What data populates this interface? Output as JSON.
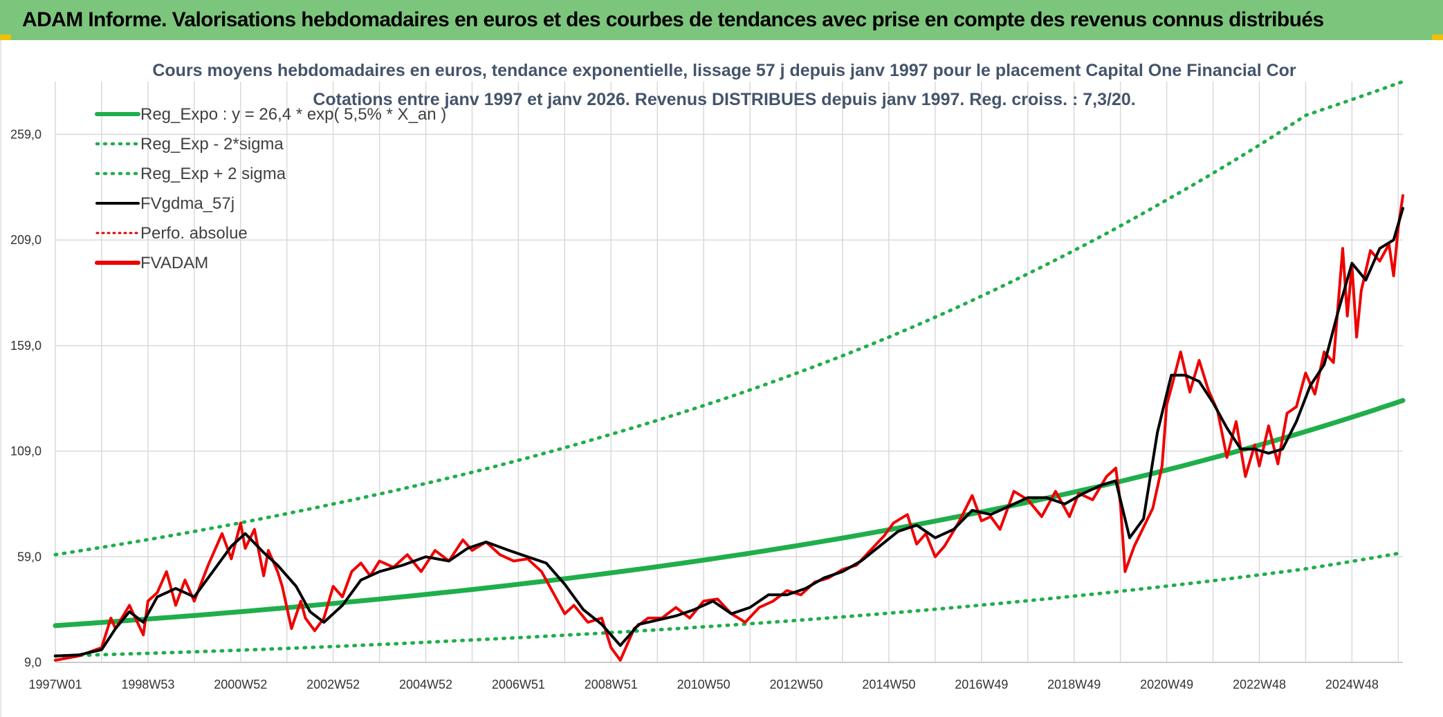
{
  "header": {
    "title": "ADAM Informe. Valorisations hebdomadaires en euros et des courbes de tendances avec prise en compte des revenus connus distribués"
  },
  "colors": {
    "header_bg": "#7cc57c",
    "trend": "#1fae4b",
    "band": "#1fae4b",
    "smooth": "#000000",
    "perf": "#e00000",
    "adam": "#ee0000",
    "grid": "#d9d9d9"
  },
  "chart_data": {
    "type": "line",
    "title_lines": [
      "Cours moyens hebdomadaires en euros, tendance exponentielle, lissage 57 j depuis janv 1997 pour le placement Capital One Financial Cor",
      "Cotations entre janv 1997 et janv 2026. Revenus DISTRIBUES depuis janv 1997. Reg. croiss. : 7,3/20."
    ],
    "xlabel": "",
    "ylabel": "",
    "ylim": [
      9,
      284
    ],
    "xlim": [
      1997.0,
      2026.1
    ],
    "yticks": [
      9.0,
      59.0,
      109.0,
      159.0,
      209.0,
      259.0
    ],
    "ytick_labels": [
      "9,0",
      "59,0",
      "109,0",
      "159,0",
      "209,0",
      "259,0"
    ],
    "xtick_labels": [
      "1997W01",
      "1998W53",
      "2000W52",
      "2002W52",
      "2004W52",
      "2006W51",
      "2008W51",
      "2010W50",
      "2012W50",
      "2014W50",
      "2016W49",
      "2018W49",
      "2020W49",
      "2022W48",
      "2024W48"
    ],
    "xtick_values": [
      1997.0,
      1999.0,
      2001.0,
      2003.0,
      2005.0,
      2007.0,
      2009.0,
      2011.0,
      2013.0,
      2015.0,
      2017.0,
      2019.0,
      2021.0,
      2023.0,
      2025.0
    ],
    "legend": [
      {
        "label": "Reg_Expo : y = 26,4 * exp( 5,5% *  X_an )",
        "style": "solid-thick",
        "color": "#1fae4b"
      },
      {
        "label": "Reg_Exp - 2*sigma",
        "style": "dotted",
        "color": "#1fae4b"
      },
      {
        "label": "Reg_Exp + 2 sigma",
        "style": "dotted",
        "color": "#1fae4b"
      },
      {
        "label": "FVgdma_57j",
        "style": "solid",
        "color": "#000000"
      },
      {
        "label": "Perfo. absolue",
        "style": "dotted-thin",
        "color": "#e00000"
      },
      {
        "label": "FVADAM",
        "style": "solid-thick",
        "color": "#ee0000"
      }
    ],
    "legend_position": "top-left",
    "series": [
      {
        "name": "Reg_Expo",
        "x": [
          1997.0,
          2000.0,
          2003.0,
          2006.0,
          2009.0,
          2012.0,
          2015.0,
          2018.0,
          2021.0,
          2024.0,
          2026.1
        ],
        "values": [
          26.4,
          31.2,
          36.9,
          43.5,
          51.4,
          60.7,
          71.8,
          84.8,
          100.1,
          118.3,
          133.0
        ]
      },
      {
        "name": "Reg_Exp - 2*sigma",
        "x": [
          1997.0,
          2000.0,
          2003.0,
          2006.0,
          2009.0,
          2012.0,
          2015.0,
          2018.0,
          2021.0,
          2024.0,
          2026.1
        ],
        "values": [
          12.0,
          14.0,
          16.5,
          19.6,
          23.1,
          27.3,
          32.3,
          38.2,
          45.1,
          53.3,
          61.0
        ]
      },
      {
        "name": "Reg_Exp + 2 sigma",
        "x": [
          1997.0,
          2000.0,
          2003.0,
          2006.0,
          2009.0,
          2012.0,
          2015.0,
          2018.0,
          2021.0,
          2024.0,
          2026.1
        ],
        "values": [
          60.0,
          71.0,
          84.0,
          99.0,
          117.0,
          138.0,
          163.0,
          193.0,
          228.0,
          268.0,
          284.0
        ]
      },
      {
        "name": "FVgdma_57j",
        "x": [
          1997.0,
          1997.5,
          1998.0,
          1998.3,
          1998.6,
          1998.9,
          1999.2,
          1999.6,
          2000.0,
          2000.4,
          2000.8,
          2001.1,
          2001.5,
          2001.8,
          2002.2,
          2002.5,
          2002.8,
          2003.2,
          2003.6,
          2004.0,
          2004.5,
          2005.0,
          2005.5,
          2005.9,
          2006.3,
          2006.8,
          2007.2,
          2007.6,
          2008.0,
          2008.4,
          2008.8,
          2009.2,
          2009.6,
          2010.0,
          2010.4,
          2010.8,
          2011.2,
          2011.6,
          2012.0,
          2012.4,
          2012.8,
          2013.2,
          2013.6,
          2014.0,
          2014.4,
          2014.8,
          2015.2,
          2015.6,
          2016.0,
          2016.4,
          2016.8,
          2017.2,
          2017.6,
          2018.0,
          2018.4,
          2018.8,
          2019.2,
          2019.6,
          2019.9,
          2020.2,
          2020.5,
          2020.8,
          2021.1,
          2021.4,
          2021.7,
          2022.0,
          2022.3,
          2022.6,
          2022.9,
          2023.2,
          2023.5,
          2023.8,
          2024.1,
          2024.4,
          2024.7,
          2025.0,
          2025.3,
          2025.6,
          2025.9,
          2026.1
        ],
        "values": [
          12.0,
          12.5,
          15.0,
          25.0,
          33.0,
          28.0,
          40.0,
          44.0,
          40.0,
          52.0,
          64.0,
          70.0,
          61.0,
          55.0,
          45.0,
          33.0,
          28.0,
          36.0,
          48.0,
          52.0,
          55.0,
          59.0,
          57.0,
          63.0,
          66.0,
          62.0,
          59.0,
          56.0,
          46.0,
          34.0,
          27.0,
          17.0,
          27.0,
          29.0,
          31.0,
          34.0,
          38.0,
          32.0,
          35.0,
          41.0,
          41.0,
          44.0,
          49.0,
          52.0,
          57.0,
          64.0,
          71.0,
          74.0,
          68.0,
          72.0,
          81.0,
          79.0,
          83.0,
          87.0,
          87.0,
          84.0,
          89.0,
          93.0,
          95.0,
          68.0,
          77.0,
          118.0,
          145.0,
          145.0,
          142.0,
          132.0,
          120.0,
          110.0,
          110.0,
          108.0,
          110.0,
          123.0,
          140.0,
          150.0,
          175.0,
          198.0,
          190.0,
          205.0,
          209.0,
          224.0
        ]
      },
      {
        "name": "FVADAM",
        "x": [
          1997.0,
          1997.5,
          1998.0,
          1998.2,
          1998.3,
          1998.6,
          1998.9,
          1999.0,
          1999.2,
          1999.4,
          1999.6,
          1999.8,
          2000.0,
          2000.3,
          2000.6,
          2000.8,
          2001.0,
          2001.1,
          2001.3,
          2001.5,
          2001.6,
          2001.8,
          2001.9,
          2002.1,
          2002.3,
          2002.4,
          2002.6,
          2002.8,
          2003.0,
          2003.2,
          2003.4,
          2003.6,
          2003.8,
          2004.0,
          2004.3,
          2004.6,
          2004.9,
          2005.2,
          2005.5,
          2005.8,
          2006.0,
          2006.3,
          2006.6,
          2006.9,
          2007.2,
          2007.5,
          2007.8,
          2008.0,
          2008.2,
          2008.5,
          2008.8,
          2009.0,
          2009.2,
          2009.5,
          2009.8,
          2010.1,
          2010.4,
          2010.7,
          2011.0,
          2011.3,
          2011.6,
          2011.9,
          2012.2,
          2012.5,
          2012.8,
          2013.1,
          2013.4,
          2013.7,
          2014.0,
          2014.3,
          2014.6,
          2014.9,
          2015.1,
          2015.4,
          2015.6,
          2015.8,
          2016.0,
          2016.2,
          2016.5,
          2016.8,
          2017.0,
          2017.2,
          2017.4,
          2017.7,
          2018.0,
          2018.3,
          2018.6,
          2018.9,
          2019.1,
          2019.4,
          2019.7,
          2019.9,
          2020.0,
          2020.1,
          2020.3,
          2020.5,
          2020.7,
          2020.9,
          2021.0,
          2021.1,
          2021.3,
          2021.5,
          2021.7,
          2021.9,
          2022.1,
          2022.3,
          2022.5,
          2022.7,
          2022.9,
          2023.0,
          2023.2,
          2023.4,
          2023.6,
          2023.8,
          2024.0,
          2024.2,
          2024.4,
          2024.6,
          2024.7,
          2024.8,
          2024.9,
          2025.0,
          2025.1,
          2025.2,
          2025.4,
          2025.6,
          2025.8,
          2025.9,
          2026.0,
          2026.1
        ],
        "values": [
          10.0,
          12.0,
          16.0,
          30.0,
          25.0,
          36.0,
          22.0,
          38.0,
          42.0,
          52.0,
          36.0,
          48.0,
          38.0,
          55.0,
          70.0,
          58.0,
          75.0,
          63.0,
          72.0,
          50.0,
          62.0,
          52.0,
          45.0,
          25.0,
          38.0,
          30.0,
          24.0,
          30.0,
          45.0,
          40.0,
          52.0,
          56.0,
          50.0,
          57.0,
          54.0,
          60.0,
          52.0,
          62.0,
          57.0,
          67.0,
          62.0,
          66.0,
          60.0,
          57.0,
          58.0,
          52.0,
          40.0,
          32.0,
          36.0,
          28.0,
          30.0,
          16.0,
          10.0,
          25.0,
          30.0,
          30.0,
          35.0,
          30.0,
          38.0,
          39.0,
          32.0,
          28.0,
          35.0,
          38.0,
          43.0,
          41.0,
          47.0,
          49.0,
          53.0,
          55.0,
          62.0,
          69.0,
          75.0,
          79.0,
          65.0,
          70.0,
          59.0,
          64.0,
          75.0,
          88.0,
          76.0,
          78.0,
          72.0,
          90.0,
          86.0,
          78.0,
          90.0,
          78.0,
          89.0,
          86.0,
          97.0,
          101.0,
          84.0,
          52.0,
          64.0,
          73.0,
          82.0,
          102.0,
          131.0,
          139.0,
          156.0,
          137.0,
          152.0,
          138.0,
          128.0,
          106.0,
          123.0,
          97.0,
          112.0,
          102.0,
          121.0,
          103.0,
          127.0,
          130.0,
          146.0,
          136.0,
          156.0,
          151.0,
          178.0,
          205.0,
          173.0,
          197.0,
          163.0,
          185.0,
          204.0,
          199.0,
          207.0,
          192.0,
          215.0,
          230.0
        ]
      }
    ]
  }
}
